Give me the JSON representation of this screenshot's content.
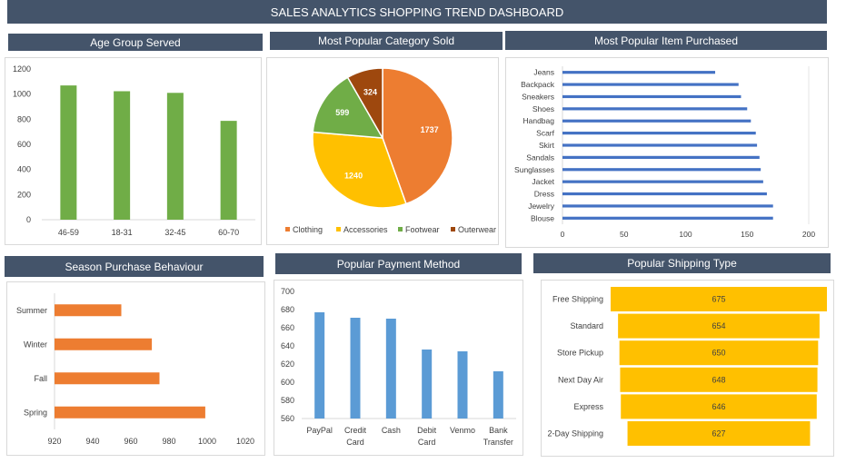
{
  "page_title": "SALES ANALYTICS SHOPPING TREND DASHBOARD",
  "colors": {
    "header_bg": "#44546a",
    "green": "#70ad47",
    "orange": "#ed7d31",
    "gold": "#ffc000",
    "brown": "#9e480e",
    "blue": "#5b9bd5",
    "bar_blue": "#4472c4"
  },
  "chart_data": [
    {
      "id": "age",
      "title": "Age Group Served",
      "type": "bar",
      "categories": [
        "46-59",
        "18-31",
        "32-45",
        "60-70"
      ],
      "values": [
        1069,
        1023,
        1010,
        787
      ],
      "ylim": [
        0,
        1200
      ],
      "yticks": [
        "0",
        "200",
        "400",
        "600",
        "800",
        "1000",
        "1200"
      ],
      "color": "#70ad47"
    },
    {
      "id": "category",
      "title": "Most Popular Category Sold",
      "type": "pie",
      "labels": [
        "Clothing",
        "Accessories",
        "Footwear",
        "Outerwear"
      ],
      "values": [
        1737,
        1240,
        599,
        324
      ],
      "value_labels": [
        "1737",
        "1240",
        "599",
        "324"
      ],
      "colors": [
        "#ed7d31",
        "#ffc000",
        "#70ad47",
        "#9e480e"
      ],
      "legend": "bottom"
    },
    {
      "id": "item",
      "title": "Most Popular Item Purchased",
      "type": "bar",
      "orientation": "horizontal",
      "categories": [
        "Jeans",
        "Backpack",
        "Sneakers",
        "Shoes",
        "Handbag",
        "Scarf",
        "Skirt",
        "Sandals",
        "Sunglasses",
        "Jacket",
        "Dress",
        "Jewelry",
        "Blouse"
      ],
      "values": [
        124,
        143,
        145,
        150,
        153,
        157,
        158,
        160,
        161,
        163,
        166,
        171,
        171
      ],
      "xlim": [
        0,
        200
      ],
      "xticks": [
        "0",
        "50",
        "100",
        "150",
        "200"
      ],
      "color": "#4472c4"
    },
    {
      "id": "season",
      "title": "Season Purchase Behaviour",
      "type": "bar",
      "orientation": "horizontal",
      "categories": [
        "Summer",
        "Winter",
        "Fall",
        "Spring"
      ],
      "values": [
        955,
        971,
        975,
        999
      ],
      "xlim": [
        920,
        1020
      ],
      "xticks": [
        "920",
        "940",
        "960",
        "980",
        "1000",
        "1020"
      ],
      "color": "#ed7d31"
    },
    {
      "id": "payment",
      "title": "Popular Payment Method",
      "type": "bar",
      "categories": [
        [
          "PayPal"
        ],
        [
          "Credit",
          "Card"
        ],
        [
          "Cash"
        ],
        [
          "Debit",
          "Card"
        ],
        [
          "Venmo"
        ],
        [
          "Bank",
          "Transfer"
        ]
      ],
      "values": [
        677,
        671,
        670,
        636,
        634,
        612
      ],
      "ylim": [
        560,
        700
      ],
      "yticks": [
        "560",
        "580",
        "600",
        "620",
        "640",
        "660",
        "680",
        "700"
      ],
      "color": "#5b9bd5"
    },
    {
      "id": "shipping",
      "title": "Popular Shipping Type",
      "type": "bar",
      "orientation": "horizontal",
      "style": "funnel",
      "categories": [
        "Free Shipping",
        "Standard",
        "Store Pickup",
        "Next Day Air",
        "Express",
        "2-Day Shipping"
      ],
      "values": [
        675,
        654,
        650,
        648,
        646,
        627
      ],
      "value_labels": [
        "675",
        "654",
        "650",
        "648",
        "646",
        "627"
      ],
      "color": "#ffc000"
    }
  ]
}
